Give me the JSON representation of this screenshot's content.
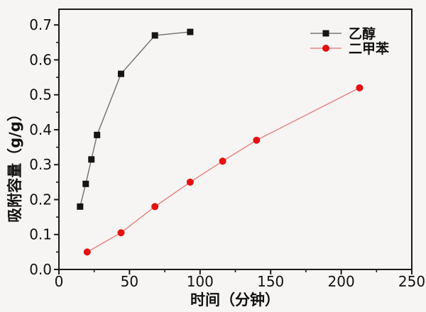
{
  "figure": {
    "background": "#f6f5f3",
    "frame_color": "#1a1a1a",
    "text_color": "#111111"
  },
  "chart_data": {
    "type": "line",
    "title": "",
    "xlabel": "时间（分钟）",
    "ylabel": "吸附容量（g/g）",
    "xlim": [
      0,
      250
    ],
    "ylim": [
      0,
      0.745
    ],
    "grid": false,
    "legend_position": "top-right-inside",
    "x_ticks": {
      "major": [
        [
          0,
          "0"
        ],
        [
          50,
          "50"
        ],
        [
          100,
          "100"
        ],
        [
          150,
          "150"
        ],
        [
          200,
          "200"
        ],
        [
          250,
          "250"
        ]
      ],
      "minor": [
        25,
        75,
        125,
        175,
        225
      ]
    },
    "y_ticks": {
      "major": [
        [
          0,
          "0.0"
        ],
        [
          0.1,
          "0.1"
        ],
        [
          0.2,
          "0.2"
        ],
        [
          0.3,
          "0.3"
        ],
        [
          0.4,
          "0.4"
        ],
        [
          0.5,
          "0.5"
        ],
        [
          0.6,
          "0.6"
        ],
        [
          0.7,
          "0.7"
        ]
      ],
      "minor": [
        0.05,
        0.15,
        0.25,
        0.35,
        0.45,
        0.55,
        0.65
      ]
    },
    "series": [
      {
        "id": "ethanol",
        "name": "乙醇",
        "marker": "square",
        "color": "#151515",
        "line_color": "#777777",
        "points": [
          [
            15,
            0.18
          ],
          [
            19,
            0.245
          ],
          [
            23,
            0.315
          ],
          [
            27,
            0.385
          ],
          [
            44,
            0.56
          ],
          [
            68,
            0.67
          ],
          [
            93,
            0.68
          ]
        ]
      },
      {
        "id": "xylene",
        "name": "二甲苯",
        "marker": "circle",
        "color": "#e41111",
        "line_color": "#e98585",
        "points": [
          [
            20,
            0.05
          ],
          [
            44,
            0.105
          ],
          [
            68,
            0.18
          ],
          [
            93,
            0.25
          ],
          [
            116,
            0.31
          ],
          [
            140,
            0.37
          ],
          [
            213,
            0.52
          ]
        ]
      }
    ]
  }
}
